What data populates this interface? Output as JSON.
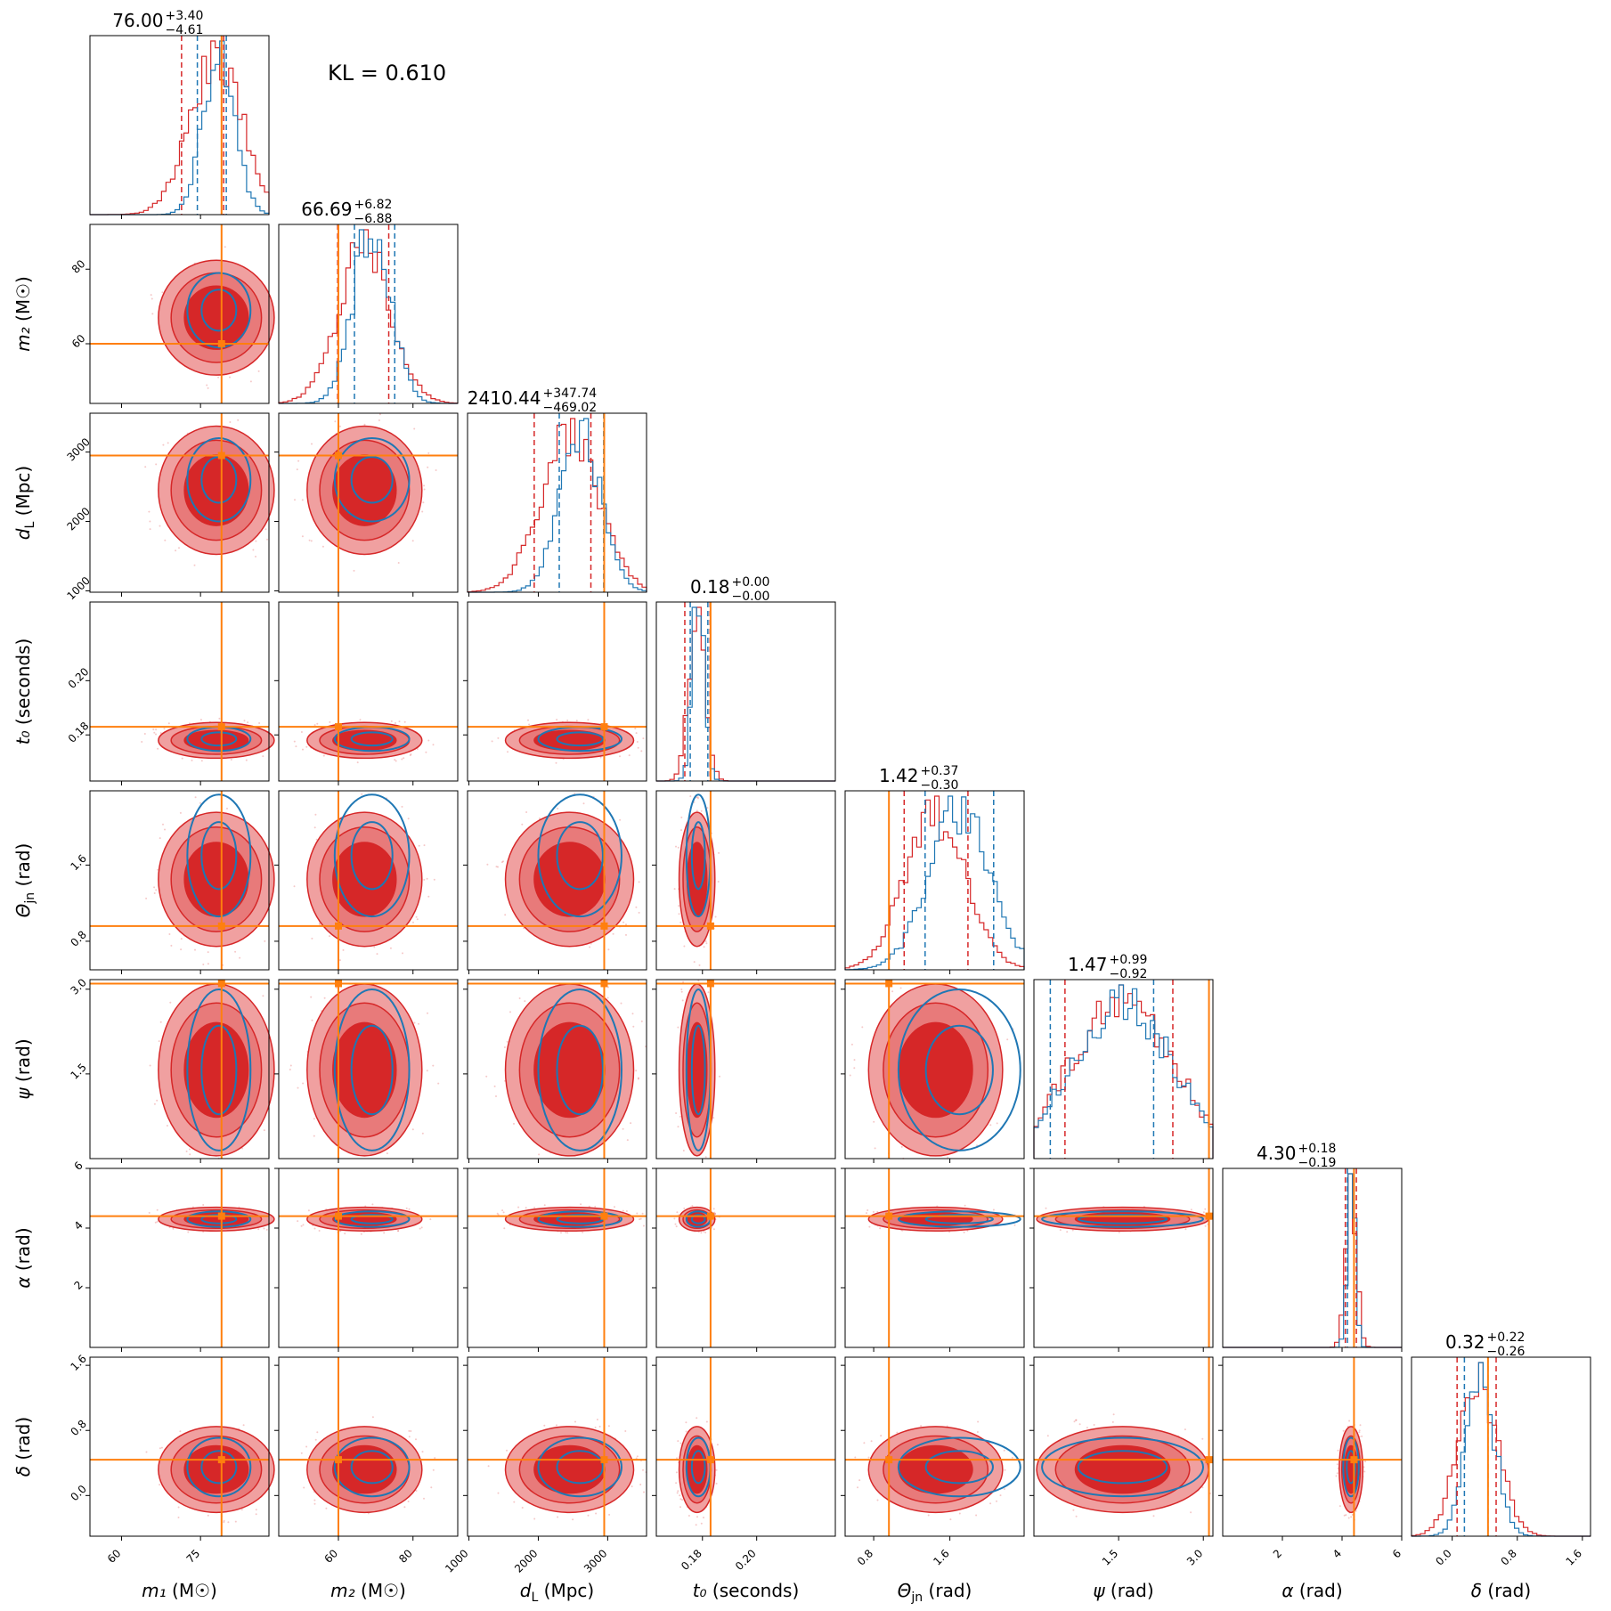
{
  "kl_text": "KL = 0.610",
  "colors": {
    "model_a": "#d62728",
    "model_a_fill_outer": "#f0a0a0",
    "model_a_fill_mid": "#e87a7a",
    "model_a_fill_inner": "#d62728",
    "model_b": "#1f77b4",
    "truth": "#ff7f0e"
  },
  "chart_data": {
    "type": "corner",
    "parameters": [
      {
        "key": "m1",
        "label": "m₁ (M☉)",
        "range": [
          54,
          88
        ],
        "ticks": [
          60,
          75
        ],
        "tick_labels": [
          "60",
          "75"
        ],
        "truth": 79,
        "title": {
          "median": "76.00",
          "plus": "+3.40",
          "minus": "−4.61"
        },
        "qa": [
          71.4,
          79.4
        ],
        "qb": [
          74.4,
          79.9
        ],
        "mean": 78,
        "sd": 5,
        "mean_b": 78.5,
        "sd_b": 3
      },
      {
        "key": "m2",
        "label": "m₂ (M☉)",
        "range": [
          44,
          92
        ],
        "ticks": [
          60,
          80
        ],
        "tick_labels": [
          "60",
          "80"
        ],
        "truth": 60,
        "title": {
          "median": "66.69",
          "plus": "+6.82",
          "minus": "−6.88"
        },
        "qa": [
          59.8,
          73.5
        ],
        "qb": [
          64.3,
          75.1
        ],
        "mean": 67,
        "sd": 7,
        "mean_b": 69,
        "sd_b": 5
      },
      {
        "key": "dL",
        "label": "d_L (Mpc)",
        "range": [
          980,
          3560
        ],
        "ticks": [
          1000,
          2000,
          3000
        ],
        "tick_labels": [
          "1000",
          "2000",
          "3000"
        ],
        "truth": 2950,
        "title": {
          "median": "2410.44",
          "plus": "+347.74",
          "minus": "−469.02"
        },
        "qa": [
          1941,
          2758
        ],
        "qb": [
          2302,
          2942
        ],
        "mean": 2450,
        "sd": 420,
        "mean_b": 2600,
        "sd_b": 300
      },
      {
        "key": "t0",
        "label": "t₀ (seconds)",
        "range": [
          0.163,
          0.229
        ],
        "ticks": [
          0.18,
          0.2
        ],
        "tick_labels": [
          "0.18",
          "0.20"
        ],
        "truth": 0.183,
        "title": {
          "median": "0.18",
          "plus": "+0.00",
          "minus": "−0.00"
        },
        "qa": [
          0.1735,
          0.1828
        ],
        "qb": [
          0.1755,
          0.182
        ],
        "mean": 0.178,
        "sd": 0.003,
        "mean_b": 0.1785,
        "sd_b": 0.0022
      },
      {
        "key": "theta",
        "label": "Θ_jn (rad)",
        "range": [
          0.5,
          2.38
        ],
        "ticks": [
          0.8,
          1.6
        ],
        "tick_labels": [
          "0.8",
          "1.6"
        ],
        "truth": 0.96,
        "title": {
          "median": "1.42",
          "plus": "+0.37",
          "minus": "−0.30"
        },
        "qa": [
          1.12,
          1.79
        ],
        "qb": [
          1.34,
          2.06
        ],
        "mean": 1.45,
        "sd": 0.32,
        "mean_b": 1.7,
        "sd_b": 0.32
      },
      {
        "key": "psi",
        "label": "ψ (rad)",
        "range": [
          0.0,
          3.17
        ],
        "ticks": [
          1.5,
          3.0
        ],
        "tick_labels": [
          "1.5",
          "3.0"
        ],
        "truth": 3.1,
        "title": {
          "median": "1.47",
          "plus": "+0.99",
          "minus": "−0.92"
        },
        "qa": [
          0.55,
          2.46
        ],
        "qb": [
          0.29,
          2.12
        ],
        "mean": 1.57,
        "sd": 0.9,
        "mean_b": 1.57,
        "sd_b": 0.9
      },
      {
        "key": "alpha",
        "label": "α (rad)",
        "range": [
          0.0,
          6.0
        ],
        "ticks": [
          2,
          4,
          6
        ],
        "tick_labels": [
          "2",
          "4",
          "6"
        ],
        "truth": 4.4,
        "title": {
          "median": "4.30",
          "plus": "+0.18",
          "minus": "−0.19"
        },
        "qa": [
          4.11,
          4.48
        ],
        "qb": [
          4.18,
          4.4
        ],
        "mean": 4.3,
        "sd": 0.18,
        "mean_b": 4.3,
        "sd_b": 0.13
      },
      {
        "key": "delta",
        "label": "δ (rad)",
        "range": [
          -0.5,
          1.7
        ],
        "ticks": [
          0.0,
          0.8,
          1.6
        ],
        "tick_labels": [
          "0.0",
          "0.8",
          "1.6"
        ],
        "truth": 0.44,
        "title": {
          "median": "0.32",
          "plus": "+0.22",
          "minus": "−0.26"
        },
        "qa": [
          0.06,
          0.54
        ],
        "qb": [
          0.15,
          0.44
        ],
        "mean": 0.32,
        "sd": 0.24,
        "mean_b": 0.35,
        "sd_b": 0.18
      }
    ]
  }
}
